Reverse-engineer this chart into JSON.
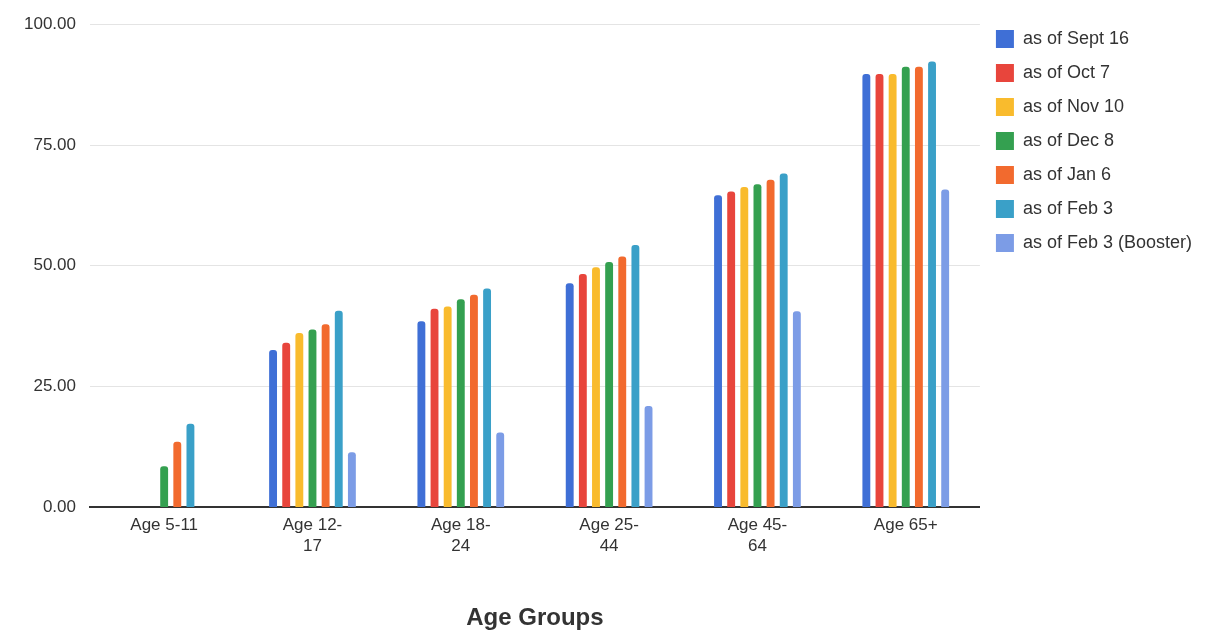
{
  "chart_data": {
    "type": "bar",
    "xlabel": "Age Groups",
    "categories": [
      "Age 5-11",
      "Age 12-17",
      "Age 18-24",
      "Age 25-44",
      "Age 45-64",
      "Age 65+"
    ],
    "series": [
      {
        "name": "as of Sept 16",
        "color": "#3f6fd6",
        "values": [
          null,
          32.6,
          38.5,
          46.4,
          64.6,
          89.7
        ]
      },
      {
        "name": "as of Oct 7",
        "color": "#e8453c",
        "values": [
          null,
          34.1,
          41.1,
          48.3,
          65.4,
          89.7
        ]
      },
      {
        "name": "as of Nov 10",
        "color": "#f9bb2d",
        "values": [
          null,
          36.1,
          41.6,
          49.7,
          66.3,
          89.7
        ]
      },
      {
        "name": "as of Dec 8",
        "color": "#34a050",
        "values": [
          8.5,
          36.8,
          43.1,
          50.8,
          66.9,
          91.2
        ]
      },
      {
        "name": "as of Jan 6",
        "color": "#f26a2e",
        "values": [
          13.6,
          37.9,
          44.0,
          51.9,
          67.8,
          91.2
        ]
      },
      {
        "name": "as of Feb 3",
        "color": "#3aa0c8",
        "values": [
          17.3,
          40.7,
          45.3,
          54.3,
          69.1,
          92.3
        ]
      },
      {
        "name": "as of Feb 3 (Booster)",
        "color": "#7c9ce6",
        "values": [
          null,
          11.4,
          15.5,
          21.0,
          40.6,
          65.8
        ]
      }
    ],
    "ylim": [
      0,
      100
    ],
    "yticks": [
      {
        "value": 0,
        "label": "0.00"
      },
      {
        "value": 25,
        "label": "25.00"
      },
      {
        "value": 50,
        "label": "50.00"
      },
      {
        "value": 75,
        "label": "75.00"
      },
      {
        "value": 100,
        "label": "100.00"
      }
    ],
    "grid": "y",
    "legend": "right"
  }
}
